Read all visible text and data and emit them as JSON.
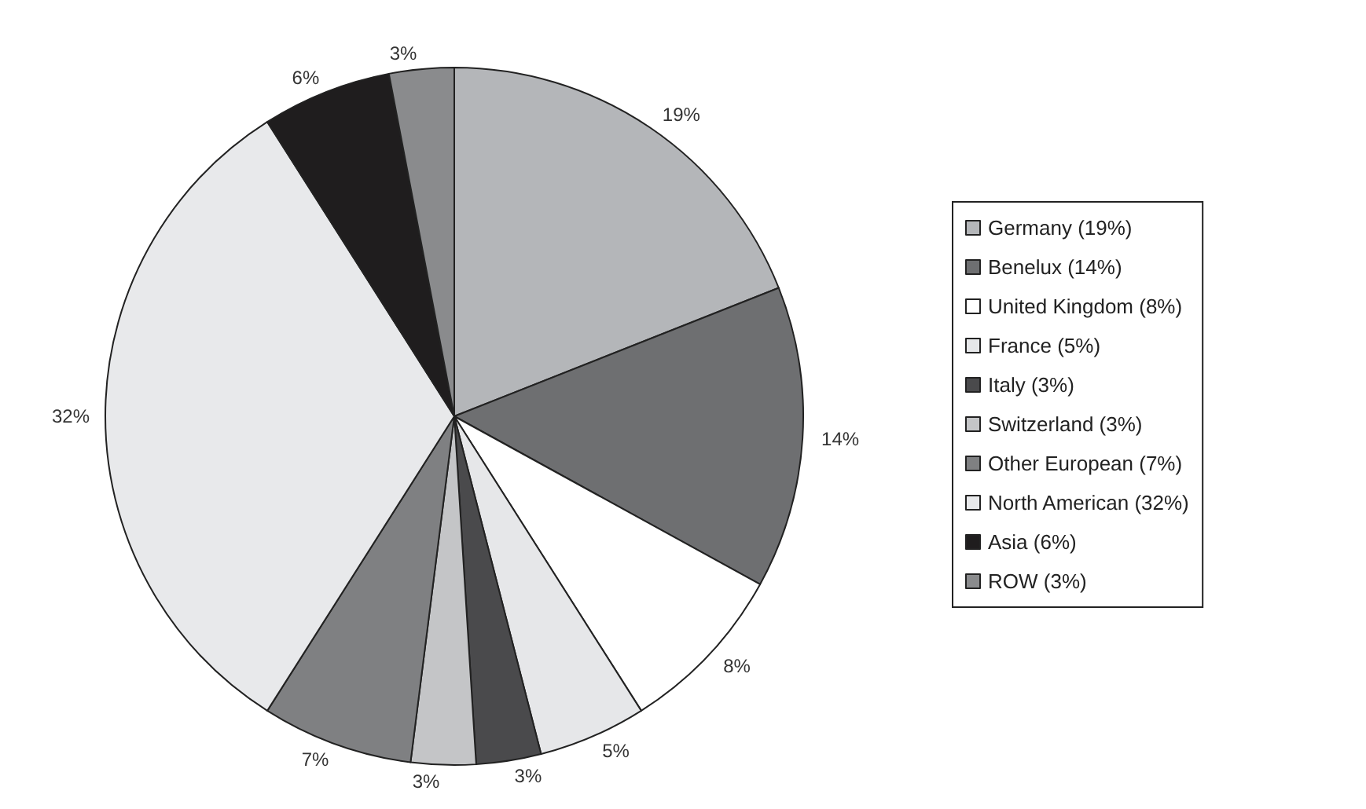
{
  "chart_data": {
    "type": "pie",
    "categories": [
      "Germany (19%)",
      "Benelux (14%)",
      "United Kingdom (8%)",
      "France (5%)",
      "Italy (3%)",
      "Switzerland (3%)",
      "Other European (7%)",
      "North American (32%)",
      "Asia (6%)",
      "ROW (3%)"
    ],
    "values": [
      19,
      14,
      8,
      5,
      3,
      3,
      7,
      32,
      6,
      3
    ],
    "value_labels": [
      "19%",
      "14%",
      "8%",
      "5%",
      "3%",
      "3%",
      "7%",
      "32%",
      "6%",
      "3%"
    ],
    "colors": [
      "#b4b6b9",
      "#6e6f71",
      "#ffffff",
      "#e6e7e9",
      "#4a4a4c",
      "#c4c5c7",
      "#7f8082",
      "#e8e9eb",
      "#1f1d1e",
      "#8a8b8d"
    ],
    "legend": "right"
  }
}
